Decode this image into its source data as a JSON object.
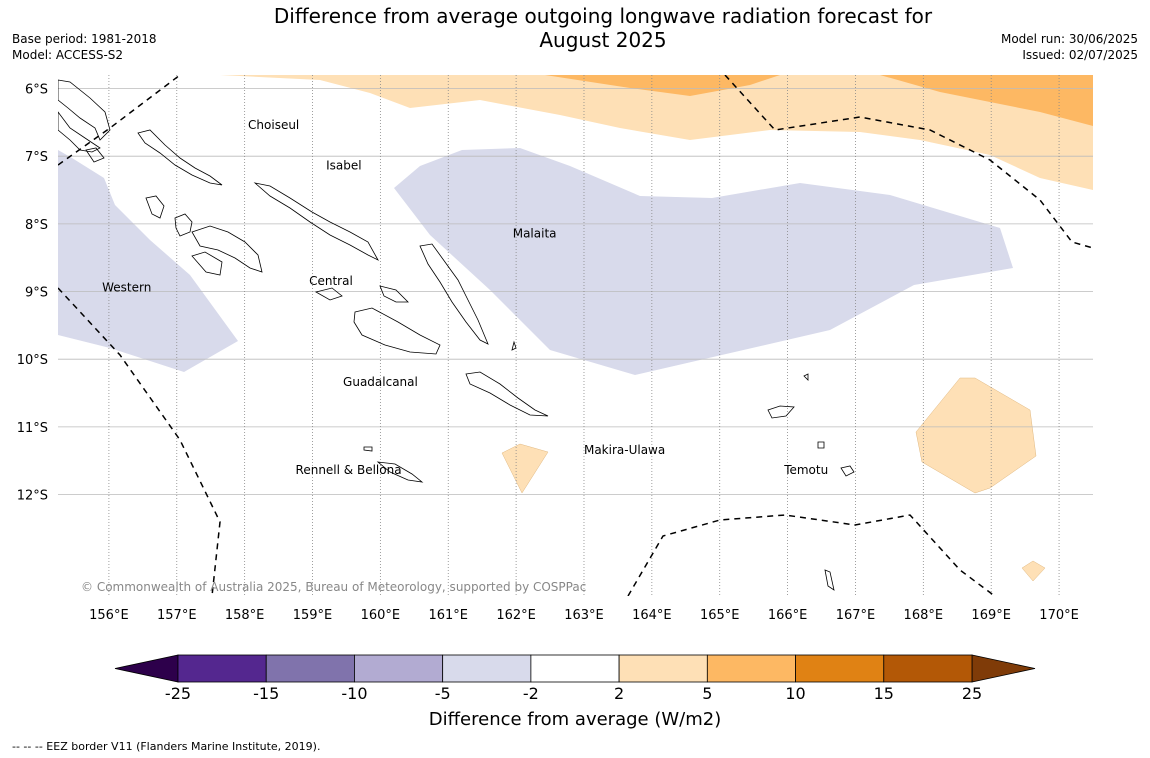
{
  "title_line1": "Difference from average outgoing longwave radiation forecast for",
  "title_line2": "August 2025",
  "base_period": "Base period: 1981-2018",
  "model": "Model: ACCESS-S2",
  "model_run": "Model run: 30/06/2025",
  "issued": "Issued: 02/07/2025",
  "copyright": "© Commonwealth of Australia 2025, Bureau of Meteorology, supported by COSPPac",
  "map": {
    "lon_range": [
      155.25,
      170.5
    ],
    "lat_range": [
      -13.5,
      -5.8
    ],
    "lat_ticks": [
      "6°S",
      "7°S",
      "8°S",
      "9°S",
      "10°S",
      "11°S",
      "12°S"
    ],
    "lon_ticks": [
      "156°E",
      "157°E",
      "158°E",
      "159°E",
      "160°E",
      "161°E",
      "162°E",
      "163°E",
      "164°E",
      "165°E",
      "166°E",
      "167°E",
      "168°E",
      "169°E",
      "170°E"
    ],
    "province_labels": [
      {
        "name": "Choiseul",
        "lon": 158.05,
        "lat": -6.6
      },
      {
        "name": "Isabel",
        "lon": 159.2,
        "lat": -7.2
      },
      {
        "name": "Malaita",
        "lon": 161.95,
        "lat": -8.2
      },
      {
        "name": "Western",
        "lon": 155.9,
        "lat": -9.0
      },
      {
        "name": "Central",
        "lon": 158.95,
        "lat": -8.9
      },
      {
        "name": "Guadalcanal",
        "lon": 159.45,
        "lat": -10.4
      },
      {
        "name": "Makira-Ulawa",
        "lon": 163.0,
        "lat": -11.4
      },
      {
        "name": "Temotu",
        "lon": 165.95,
        "lat": -11.7
      },
      {
        "name": "Rennell & Bellona",
        "lon": 158.75,
        "lat": -11.7
      }
    ]
  },
  "colorbar": {
    "label": "Difference from average (W/m2)",
    "ticks": [
      "-25",
      "-15",
      "-10",
      "-5",
      "-2",
      "2",
      "5",
      "10",
      "15",
      "25"
    ],
    "colors": [
      "#54278f",
      "#8073ac",
      "#b2abd2",
      "#d8daeb",
      "#ffffff",
      "#fee0b6",
      "#fdb863",
      "#e08214",
      "#b35806"
    ],
    "under_color": "#2d004b",
    "over_color": "#7f3b08"
  },
  "footnote": "--  --  -- EEZ border V11 (Flanders Marine Institute, 2019)."
}
